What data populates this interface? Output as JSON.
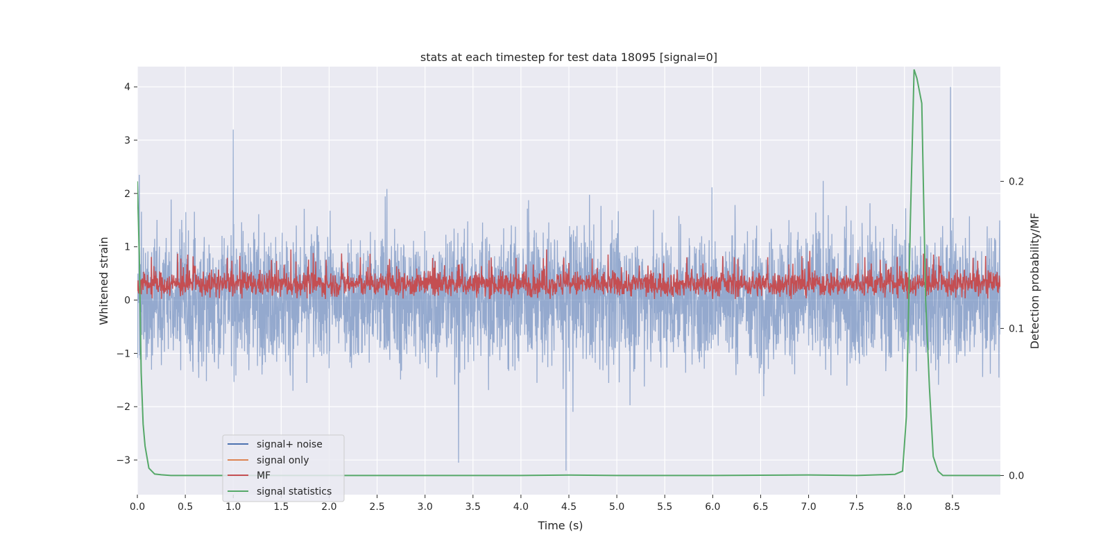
{
  "chart_data": {
    "type": "line",
    "title": "stats at each timestep for test data 18095 [signal=0]",
    "xlabel": "Time (s)",
    "ylabel": "Whitened strain",
    "y2label": "Detection probability/MF",
    "xlim": [
      0.0,
      9.0
    ],
    "ylim": [
      -3.65,
      4.38
    ],
    "y2lim": [
      -0.013,
      0.278
    ],
    "xticks": [
      "0.0",
      "0.5",
      "1.0",
      "1.5",
      "2.0",
      "2.5",
      "3.0",
      "3.5",
      "4.0",
      "4.5",
      "5.0",
      "5.5",
      "6.0",
      "6.5",
      "7.0",
      "7.5",
      "8.0",
      "8.5"
    ],
    "xtick_values": [
      0.0,
      0.5,
      1.0,
      1.5,
      2.0,
      2.5,
      3.0,
      3.5,
      4.0,
      4.5,
      5.0,
      5.5,
      6.0,
      6.5,
      7.0,
      7.5,
      8.0,
      8.5
    ],
    "yticks": [
      "4",
      "3",
      "2",
      "1",
      "0",
      "−1",
      "−2",
      "−3"
    ],
    "ytick_values": [
      4,
      3,
      2,
      1,
      0,
      -1,
      -2,
      -3
    ],
    "y2ticks": [
      "0.2",
      "0.1",
      "0.0"
    ],
    "y2tick_values": [
      0.2,
      0.1,
      0.0
    ],
    "grid": true,
    "legend_position": "lower-left",
    "series": [
      {
        "name": "signal+ noise",
        "color": "#4c72b0",
        "axis": "left",
        "style": "dense noise, roughly within -2.5..3.0, peaks 3.2 at t=1.0, 4.0 at t=8.5, -3.2 at t=4.5",
        "highlight_points": [
          [
            0.02,
            2.35
          ],
          [
            1.0,
            3.2
          ],
          [
            3.35,
            -3.05
          ],
          [
            4.47,
            -3.2
          ],
          [
            8.48,
            4.0
          ]
        ]
      },
      {
        "name": "signal only",
        "color": "#dd8452",
        "axis": "left",
        "values": []
      },
      {
        "name": "MF",
        "color": "#c44e52",
        "axis": "left",
        "style": "band around 0.3, roughly 0.0..0.9"
      },
      {
        "name": "signal statistics",
        "color": "#55a868",
        "axis": "right",
        "x": [
          0.0,
          0.02,
          0.04,
          0.06,
          0.08,
          0.12,
          0.18,
          0.25,
          0.35,
          0.5,
          1.0,
          2.0,
          3.0,
          4.0,
          4.5,
          5.0,
          6.0,
          7.0,
          7.5,
          7.9,
          7.98,
          8.02,
          8.06,
          8.1,
          8.13,
          8.18,
          8.22,
          8.26,
          8.3,
          8.35,
          8.4,
          8.5,
          8.7,
          9.0
        ],
        "y": [
          0.2,
          0.15,
          0.07,
          0.035,
          0.02,
          0.005,
          0.001,
          0.0005,
          0.0,
          0.0,
          0.0,
          0.0,
          0.0,
          0.0,
          0.0003,
          0.0,
          0.0,
          0.0004,
          0.0,
          0.0008,
          0.003,
          0.04,
          0.17,
          0.276,
          0.27,
          0.253,
          0.12,
          0.06,
          0.013,
          0.003,
          0.0,
          0.0,
          0.0,
          0.0
        ]
      }
    ]
  }
}
